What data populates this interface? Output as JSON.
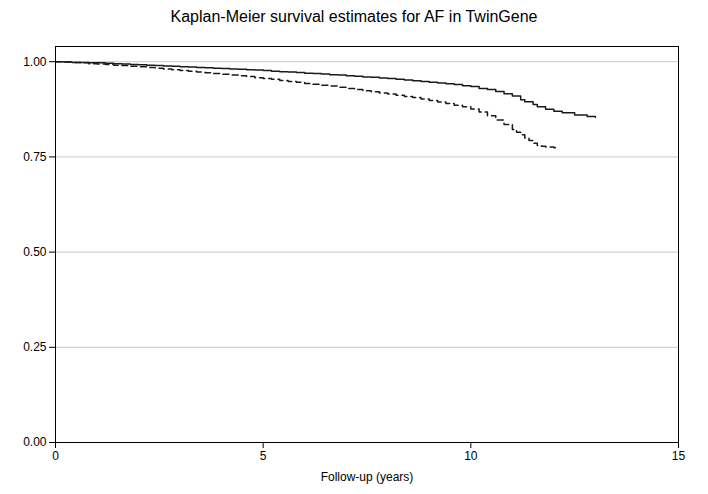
{
  "chart_data": {
    "type": "step",
    "title": "Kaplan-Meier survival estimates for AF in TwinGene",
    "xlabel": "Follow-up (years)",
    "xlim": [
      0,
      15
    ],
    "ylim": [
      0.0,
      1.04
    ],
    "xticks": [
      0,
      5,
      10,
      15
    ],
    "yticks": [
      {
        "value": 0.0,
        "label": "0.00"
      },
      {
        "value": 0.25,
        "label": "0.25"
      },
      {
        "value": 0.5,
        "label": "0.50"
      },
      {
        "value": 0.75,
        "label": "0.75"
      },
      {
        "value": 1.0,
        "label": "1.00"
      }
    ],
    "grid": "y",
    "series": [
      {
        "color": "#1a1a1a",
        "line_style": "solid",
        "x": [
          0.0,
          0.2,
          0.4,
          0.6,
          0.8,
          1.0,
          1.2,
          1.4,
          1.6,
          1.8,
          2.0,
          2.2,
          2.4,
          2.6,
          2.8,
          3.0,
          3.2,
          3.4,
          3.6,
          3.8,
          4.0,
          4.2,
          4.4,
          4.6,
          4.8,
          5.0,
          5.2,
          5.4,
          5.6,
          5.8,
          6.0,
          6.2,
          6.4,
          6.6,
          6.8,
          7.0,
          7.2,
          7.4,
          7.6,
          7.8,
          8.0,
          8.2,
          8.4,
          8.6,
          8.8,
          9.0,
          9.2,
          9.4,
          9.6,
          9.8,
          10.0,
          10.2,
          10.4,
          10.6,
          10.8,
          11.0,
          11.2,
          11.3,
          11.5,
          11.6,
          11.8,
          12.0,
          12.2,
          12.5,
          12.8,
          13.0
        ],
        "values": [
          1.0,
          0.999,
          0.998,
          0.998,
          0.997,
          0.997,
          0.996,
          0.995,
          0.994,
          0.993,
          0.992,
          0.991,
          0.99,
          0.989,
          0.988,
          0.987,
          0.986,
          0.985,
          0.984,
          0.983,
          0.982,
          0.981,
          0.98,
          0.979,
          0.978,
          0.977,
          0.975,
          0.974,
          0.973,
          0.972,
          0.97,
          0.969,
          0.968,
          0.966,
          0.965,
          0.963,
          0.962,
          0.96,
          0.959,
          0.957,
          0.956,
          0.954,
          0.952,
          0.95,
          0.948,
          0.946,
          0.944,
          0.942,
          0.94,
          0.937,
          0.935,
          0.93,
          0.927,
          0.922,
          0.916,
          0.91,
          0.9,
          0.895,
          0.888,
          0.882,
          0.875,
          0.87,
          0.866,
          0.86,
          0.856,
          0.854
        ]
      },
      {
        "color": "#1a1a1a",
        "line_style": "dashed",
        "x": [
          0.0,
          0.2,
          0.4,
          0.6,
          0.8,
          1.0,
          1.2,
          1.4,
          1.6,
          1.8,
          2.0,
          2.2,
          2.4,
          2.6,
          2.8,
          3.0,
          3.2,
          3.4,
          3.6,
          3.8,
          4.0,
          4.2,
          4.4,
          4.6,
          4.8,
          5.0,
          5.2,
          5.4,
          5.6,
          5.8,
          6.0,
          6.2,
          6.4,
          6.6,
          6.8,
          7.0,
          7.2,
          7.4,
          7.6,
          7.8,
          8.0,
          8.2,
          8.4,
          8.6,
          8.8,
          9.0,
          9.2,
          9.4,
          9.6,
          9.8,
          10.0,
          10.2,
          10.4,
          10.6,
          10.8,
          11.0,
          11.1,
          11.2,
          11.3,
          11.4,
          11.5,
          11.6,
          11.7,
          11.8,
          12.0,
          12.1
        ],
        "values": [
          1.0,
          0.999,
          0.998,
          0.997,
          0.995,
          0.994,
          0.993,
          0.991,
          0.99,
          0.988,
          0.987,
          0.985,
          0.983,
          0.981,
          0.979,
          0.977,
          0.975,
          0.973,
          0.971,
          0.969,
          0.967,
          0.965,
          0.963,
          0.961,
          0.958,
          0.956,
          0.954,
          0.951,
          0.948,
          0.946,
          0.943,
          0.941,
          0.938,
          0.936,
          0.933,
          0.93,
          0.927,
          0.924,
          0.921,
          0.918,
          0.915,
          0.912,
          0.909,
          0.906,
          0.902,
          0.898,
          0.894,
          0.89,
          0.886,
          0.882,
          0.876,
          0.868,
          0.858,
          0.847,
          0.835,
          0.822,
          0.815,
          0.808,
          0.8,
          0.793,
          0.786,
          0.78,
          0.778,
          0.776,
          0.774,
          0.772
        ]
      }
    ]
  }
}
